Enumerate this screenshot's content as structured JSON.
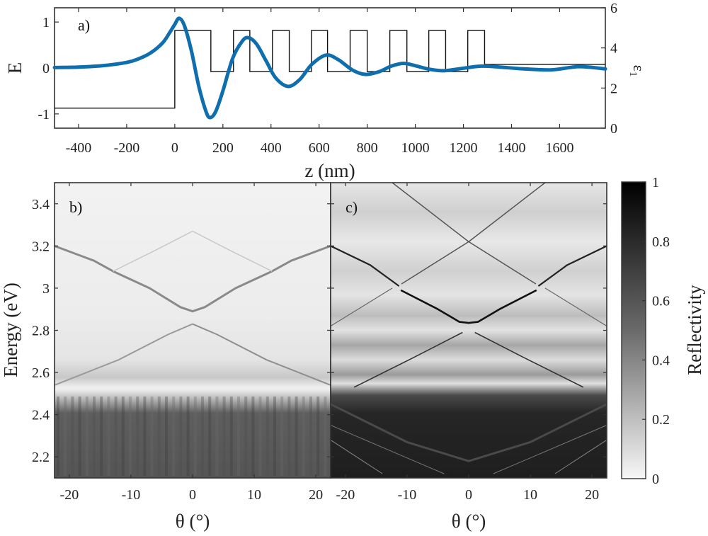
{
  "chart_data": [
    {
      "type": "line",
      "panel_label": "a)",
      "xlabel": "z (nm)",
      "ylabel": "E",
      "ylabel_right": "ε",
      "ylabel_right_sub": "1",
      "xlim": [
        -500,
        1790
      ],
      "ylim": [
        -1.31,
        1.31
      ],
      "ylim_right": [
        0,
        6
      ],
      "xticks": [
        -400,
        -200,
        0,
        200,
        400,
        600,
        800,
        1000,
        1200,
        1400,
        1600
      ],
      "yticks": [
        1,
        0,
        -1
      ],
      "yticks_right": [
        0,
        2,
        4,
        6
      ],
      "series": [
        {
          "name": "E field",
          "axis": "left",
          "color": "#0f6fae",
          "x": [
            -500,
            -400,
            -300,
            -200,
            -150,
            -100,
            -50,
            -20,
            0,
            18,
            40,
            70,
            100,
            130,
            147,
            170,
            200,
            240,
            280,
            306,
            340,
            380,
            420,
            471,
            520,
            570,
            629,
            680,
            740,
            794,
            850,
            900,
            950,
            1000,
            1060,
            1118,
            1180,
            1274,
            1350,
            1450,
            1568,
            1680,
            1790
          ],
          "y": [
            0.01,
            0.02,
            0.05,
            0.12,
            0.2,
            0.33,
            0.55,
            0.78,
            0.95,
            1.08,
            0.92,
            0.35,
            -0.4,
            -0.95,
            -1.08,
            -0.95,
            -0.5,
            0.2,
            0.58,
            0.66,
            0.52,
            0.15,
            -0.22,
            -0.4,
            -0.25,
            0.08,
            0.28,
            0.18,
            -0.05,
            -0.14,
            -0.08,
            0.04,
            0.1,
            0.05,
            -0.03,
            -0.06,
            -0.02,
            0.04,
            0.02,
            -0.02,
            -0.04,
            0.03,
            -0.02
          ]
        },
        {
          "name": "ε1 profile",
          "axis": "right",
          "color": "#000000",
          "type": "step",
          "x": [
            -500,
            0,
            150,
            244,
            312,
            406,
            476,
            568,
            635,
            729,
            800,
            894,
            965,
            1056,
            1126,
            1218,
            1288,
            1790
          ],
          "y": [
            1.0,
            4.87,
            2.82,
            4.87,
            2.82,
            4.87,
            2.82,
            4.87,
            2.82,
            4.87,
            2.82,
            4.87,
            2.82,
            4.87,
            2.82,
            4.87,
            3.18,
            3.18
          ]
        }
      ]
    },
    {
      "type": "heatmap",
      "panel_label": "b)",
      "xlabel": "θ (°)",
      "ylabel": "Energy (eV)",
      "xlim": [
        -22.4,
        22.4
      ],
      "ylim": [
        2.1,
        3.5
      ],
      "xticks": [
        -20,
        -10,
        0,
        10,
        20
      ],
      "yticks": [
        3.4,
        3.2,
        3,
        2.8,
        2.6,
        2.4,
        2.2
      ],
      "colormap": "gray_reversed",
      "band_edge_energy": 2.51,
      "features": [
        {
          "name": "upper-band-vertex",
          "theta": 0,
          "energy": 2.89
        },
        {
          "name": "lower-band-apex",
          "theta": 0,
          "energy": 2.83
        },
        {
          "name": "side-vertex-left",
          "theta": -12.9,
          "energy": 3.08
        },
        {
          "name": "side-vertex-right",
          "theta": 12.9,
          "energy": 3.08
        }
      ]
    },
    {
      "type": "heatmap",
      "panel_label": "c)",
      "xlabel": "θ (°)",
      "xlim": [
        -22.4,
        22.4
      ],
      "ylim": [
        2.1,
        3.5
      ],
      "xticks": [
        -20,
        -10,
        0,
        10,
        20
      ],
      "colormap": "gray_reversed",
      "band_edge_energy": 2.5,
      "features": [
        {
          "name": "upper-crossing",
          "theta": 0,
          "energy": 3.22
        },
        {
          "name": "side-vertex-left",
          "theta": -11.3,
          "energy": 3.01
        },
        {
          "name": "side-vertex-right",
          "theta": 11.3,
          "energy": 3.01
        },
        {
          "name": "upper-band-vertex",
          "theta": 0,
          "energy": 2.835
        },
        {
          "name": "lower-band-apex",
          "theta": 0,
          "energy": 2.79
        }
      ]
    }
  ],
  "colorbar": {
    "label": "Reflectivity",
    "ticks": [
      "1",
      "0.8",
      "0.6",
      "0.4",
      "0.2",
      "0"
    ],
    "range": [
      0,
      1
    ]
  },
  "colors": {
    "field": "#0f6fae",
    "frame": "#333333"
  }
}
